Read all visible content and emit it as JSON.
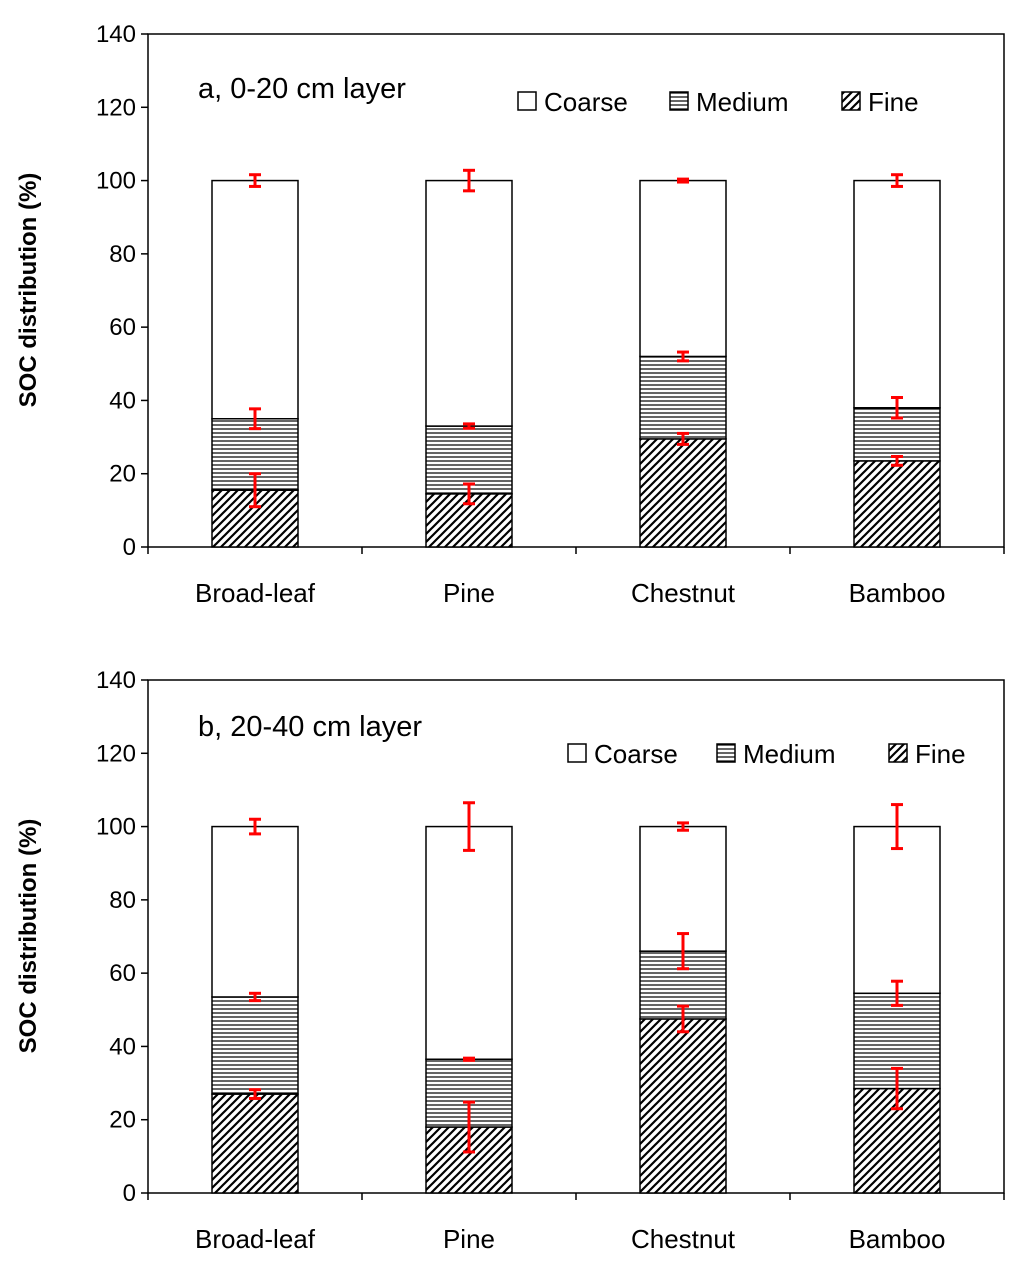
{
  "chart_data": [
    {
      "type": "bar",
      "stacked": true,
      "title": "a, 0-20 cm layer",
      "xlabel": "",
      "ylabel": "SOC distribution (%)",
      "ylim": [
        0,
        140
      ],
      "yticks": [
        0,
        20,
        40,
        60,
        80,
        100,
        120,
        140
      ],
      "categories": [
        "Broad-leaf",
        "Pine",
        "Chestnut",
        "Bamboo"
      ],
      "legend_position": "top-right",
      "series": [
        {
          "name": "Fine",
          "pattern": "hatch",
          "values": [
            15.5,
            14.5,
            29.5,
            23.5
          ],
          "errors": [
            4.5,
            2.7,
            1.5,
            1.2
          ]
        },
        {
          "name": "Medium",
          "pattern": "horizontal-lines",
          "values": [
            19.5,
            18.5,
            22.5,
            14.5
          ],
          "errors": [
            2.7,
            0.6,
            1.2,
            2.8
          ]
        },
        {
          "name": "Coarse",
          "pattern": "empty",
          "values": [
            65,
            67,
            48,
            62
          ],
          "errors": [
            1.6,
            2.8,
            0.4,
            1.6
          ]
        }
      ],
      "error_color": "#ff0000"
    },
    {
      "type": "bar",
      "stacked": true,
      "title": "b, 20-40 cm layer",
      "xlabel": "",
      "ylabel": "SOC distribution (%)",
      "ylim": [
        0,
        140
      ],
      "yticks": [
        0,
        20,
        40,
        60,
        80,
        100,
        120,
        140
      ],
      "categories": [
        "Broad-leaf",
        "Pine",
        "Chestnut",
        "Bamboo"
      ],
      "legend_position": "top-right",
      "series": [
        {
          "name": "Fine",
          "pattern": "hatch",
          "values": [
            27,
            18,
            47.5,
            28.5
          ],
          "errors": [
            1.2,
            6.8,
            3.5,
            5.5
          ]
        },
        {
          "name": "Medium",
          "pattern": "horizontal-lines",
          "values": [
            26.5,
            18.5,
            18.5,
            26
          ],
          "errors": [
            1.0,
            0.3,
            4.8,
            3.3
          ]
        },
        {
          "name": "Coarse",
          "pattern": "empty",
          "values": [
            46.5,
            63.5,
            34,
            45.5
          ],
          "errors": [
            2.0,
            6.5,
            1.0,
            6.0
          ]
        }
      ],
      "error_color": "#ff0000"
    }
  ]
}
